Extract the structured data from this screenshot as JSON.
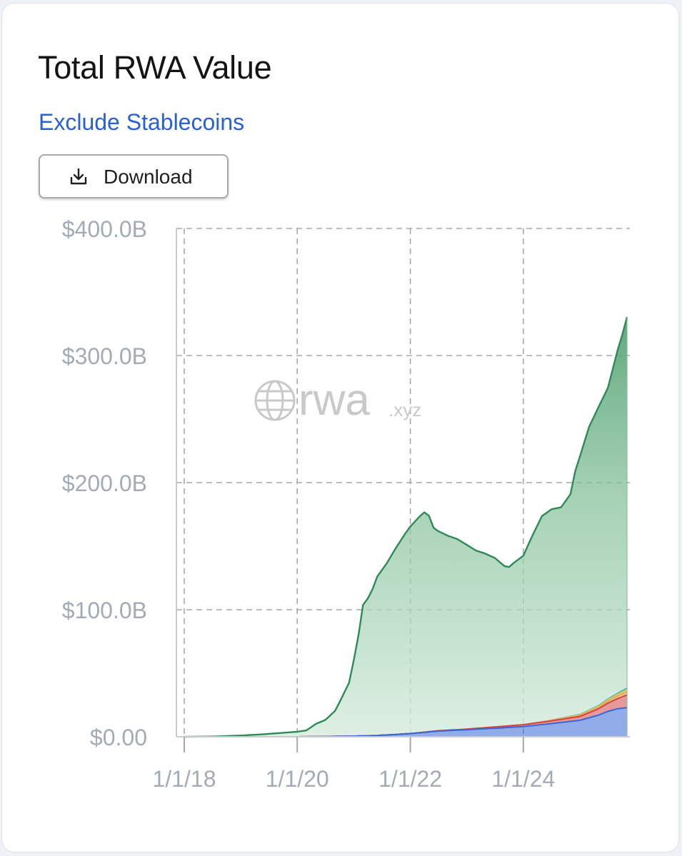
{
  "card": {
    "title": "Total RWA Value",
    "toggle_link": "Exclude Stablecoins",
    "download_label": "Download"
  },
  "watermark": {
    "brand": "rwa",
    "suffix": ".xyz"
  },
  "colors": {
    "green_line": "#2e8a57",
    "green_fill_top": "#5aa978",
    "green_fill_bottom": "#dcefe2",
    "blue": "#3867d8",
    "red": "#d04545",
    "orange": "#f0a35a",
    "yellow": "#e0cf56",
    "teal": "#4cb3ac",
    "grid": "#a8a8a8",
    "tick_text": "#a3abb6",
    "link": "#2860d8"
  },
  "chart_data": {
    "type": "area",
    "stacked": true,
    "title": "Total RWA Value",
    "xlabel": "",
    "ylabel": "",
    "x_range": [
      "2018-01-01",
      "2025-11-01"
    ],
    "ylim": [
      0,
      400
    ],
    "y_unit": "B USD",
    "grid": true,
    "x_ticks": [
      "1/1/18",
      "1/1/20",
      "1/1/22",
      "1/1/24"
    ],
    "y_ticks": [
      "$0.00",
      "$100.0B",
      "$200.0B",
      "$300.0B",
      "$400.0B"
    ],
    "series": [
      {
        "color": "#3867d8",
        "points": [
          [
            "2018-01-01",
            0
          ],
          [
            "2020-01-01",
            0
          ],
          [
            "2021-01-01",
            0.5
          ],
          [
            "2021-06-01",
            1.0
          ],
          [
            "2022-01-01",
            2.5
          ],
          [
            "2022-04-01",
            3.5
          ],
          [
            "2022-07-01",
            4.5
          ],
          [
            "2023-01-01",
            5.5
          ],
          [
            "2023-06-01",
            6.5
          ],
          [
            "2024-01-01",
            8.0
          ],
          [
            "2024-06-01",
            10.0
          ],
          [
            "2025-01-01",
            13.0
          ],
          [
            "2025-05-01",
            17.0
          ],
          [
            "2025-07-01",
            20.0
          ],
          [
            "2025-09-01",
            22.0
          ],
          [
            "2025-11-01",
            23.0
          ]
        ]
      },
      {
        "color": "#d04545",
        "points": [
          [
            "2018-01-01",
            0
          ],
          [
            "2022-01-01",
            0
          ],
          [
            "2023-01-01",
            0.5
          ],
          [
            "2024-01-01",
            1.5
          ],
          [
            "2024-06-01",
            2.0
          ],
          [
            "2025-01-01",
            3.0
          ],
          [
            "2025-05-01",
            5.0
          ],
          [
            "2025-09-01",
            8.0
          ],
          [
            "2025-11-01",
            10.0
          ]
        ]
      },
      {
        "color": "#f0a35a",
        "points": [
          [
            "2018-01-01",
            0
          ],
          [
            "2024-01-01",
            0
          ],
          [
            "2024-09-01",
            0.5
          ],
          [
            "2025-04-01",
            1.0
          ],
          [
            "2025-09-01",
            2.0
          ],
          [
            "2025-11-01",
            2.5
          ]
        ]
      },
      {
        "color": "#e0cf56",
        "points": [
          [
            "2018-01-01",
            0
          ],
          [
            "2024-06-01",
            0
          ],
          [
            "2025-06-01",
            0.8
          ],
          [
            "2025-11-01",
            1.5
          ]
        ]
      },
      {
        "color": "#4cb3ac",
        "points": [
          [
            "2018-01-01",
            0
          ],
          [
            "2024-06-01",
            0
          ],
          [
            "2025-06-01",
            0.6
          ],
          [
            "2025-11-01",
            1.2
          ]
        ]
      },
      {
        "color": "#2e8a57",
        "points": [
          [
            "2018-01-01",
            0
          ],
          [
            "2018-07-01",
            0.2
          ],
          [
            "2019-01-01",
            1.0
          ],
          [
            "2019-06-01",
            2.0
          ],
          [
            "2020-01-01",
            4.0
          ],
          [
            "2020-03-01",
            5.0
          ],
          [
            "2020-05-01",
            10.0
          ],
          [
            "2020-07-01",
            13.0
          ],
          [
            "2020-09-01",
            20.0
          ],
          [
            "2020-10-01",
            27.0
          ],
          [
            "2020-12-01",
            42.0
          ],
          [
            "2021-01-01",
            60.0
          ],
          [
            "2021-02-01",
            80.0
          ],
          [
            "2021-03-01",
            103.0
          ],
          [
            "2021-04-01",
            108.0
          ],
          [
            "2021-05-01",
            115.0
          ],
          [
            "2021-06-01",
            125.0
          ],
          [
            "2021-08-01",
            135.0
          ],
          [
            "2021-10-01",
            147.0
          ],
          [
            "2021-12-01",
            158.0
          ],
          [
            "2022-01-01",
            163.0
          ],
          [
            "2022-03-01",
            170.0
          ],
          [
            "2022-04-01",
            173.0
          ],
          [
            "2022-05-01",
            170.0
          ],
          [
            "2022-06-01",
            160.0
          ],
          [
            "2022-07-01",
            157.0
          ],
          [
            "2022-09-01",
            153.0
          ],
          [
            "2022-11-01",
            150.0
          ],
          [
            "2023-01-01",
            145.0
          ],
          [
            "2023-03-01",
            140.0
          ],
          [
            "2023-05-01",
            137.0
          ],
          [
            "2023-07-01",
            133.0
          ],
          [
            "2023-09-01",
            126.0
          ],
          [
            "2023-10-01",
            125.0
          ],
          [
            "2023-11-01",
            128.0
          ],
          [
            "2024-01-01",
            133.0
          ],
          [
            "2024-03-01",
            148.0
          ],
          [
            "2024-05-01",
            162.0
          ],
          [
            "2024-07-01",
            166.0
          ],
          [
            "2024-09-01",
            166.0
          ],
          [
            "2024-11-01",
            175.0
          ],
          [
            "2024-12-01",
            192.0
          ],
          [
            "2025-01-01",
            203.0
          ],
          [
            "2025-03-01",
            223.0
          ],
          [
            "2025-05-01",
            235.0
          ],
          [
            "2025-07-01",
            245.0
          ],
          [
            "2025-09-01",
            270.0
          ],
          [
            "2025-10-01",
            280.0
          ],
          [
            "2025-11-01",
            292.0
          ]
        ]
      }
    ]
  }
}
